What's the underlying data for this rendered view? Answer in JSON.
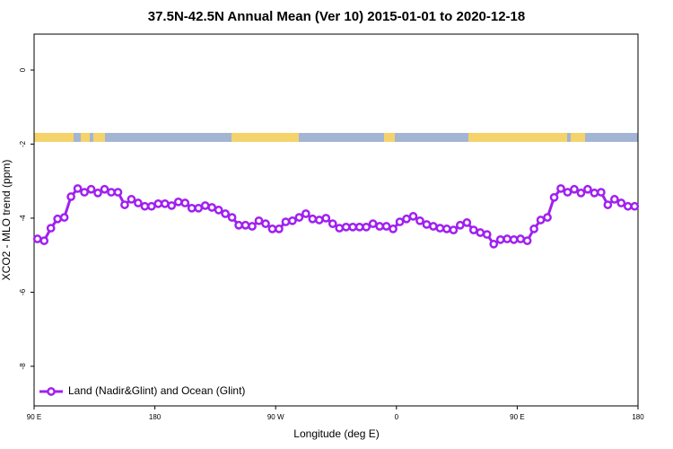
{
  "chart_data": {
    "type": "line",
    "title": "37.5N-42.5N Annual Mean (Ver 10)   2015-01-01 to 2020-12-18",
    "x_label": "Longitude (deg E)",
    "y_label": "XCO2 - MLO trend (ppm)",
    "xlim": [
      90,
      540
    ],
    "ylim": [
      -9.07,
      0.97
    ],
    "xticks": [
      {
        "value": 90,
        "label": "90 E"
      },
      180,
      {
        "value": 270,
        "label": "90 W"
      },
      {
        "value": 360,
        "label": "0"
      },
      {
        "value": 450,
        "label": "90 E"
      },
      {
        "value": 540,
        "label": "180"
      }
    ],
    "yticks": [
      0,
      -2,
      -4,
      -6,
      -8
    ],
    "legend": "bottom-left",
    "x": [
      92.5,
      97.5,
      102.5,
      107.5,
      112.5,
      117.5,
      122.5,
      127.5,
      132.5,
      137.5,
      142.5,
      147.5,
      152.5,
      157.5,
      162.5,
      167.5,
      172.5,
      177.5,
      182.5,
      187.5,
      192.5,
      197.5,
      202.5,
      207.5,
      212.5,
      217.5,
      222.5,
      227.5,
      232.5,
      237.5,
      242.5,
      247.5,
      252.5,
      257.5,
      262.5,
      267.5,
      272.5,
      277.5,
      282.5,
      287.5,
      292.5,
      297.5,
      302.5,
      307.5,
      312.5,
      317.5,
      322.5,
      327.5,
      332.5,
      337.5,
      342.5,
      347.5,
      352.5,
      357.5,
      362.5,
      367.5,
      372.5,
      377.5,
      382.5,
      387.5,
      392.5,
      397.5,
      402.5,
      407.5,
      412.5,
      417.5,
      422.5,
      427.5,
      432.5,
      437.5,
      442.5,
      447.5,
      452.5,
      457.5,
      462.5,
      467.5,
      472.5,
      477.5,
      482.5,
      487.5,
      492.5,
      497.5,
      502.5,
      507.5,
      512.5,
      517.5,
      522.5,
      527.5,
      532.5,
      537.5
    ],
    "series": [
      {
        "name": "Land (Nadir&Glint) and Ocean (Glint)",
        "color": "#a020f0",
        "values": [
          -4.56,
          -4.61,
          -4.27,
          -4.02,
          -3.98,
          -3.42,
          -3.2,
          -3.3,
          -3.22,
          -3.32,
          -3.22,
          -3.3,
          -3.3,
          -3.64,
          -3.49,
          -3.59,
          -3.68,
          -3.68,
          -3.61,
          -3.61,
          -3.66,
          -3.56,
          -3.59,
          -3.73,
          -3.73,
          -3.66,
          -3.71,
          -3.78,
          -3.88,
          -3.98,
          -4.19,
          -4.19,
          -4.22,
          -4.07,
          -4.15,
          -4.29,
          -4.29,
          -4.1,
          -4.07,
          -3.98,
          -3.88,
          -4.02,
          -4.05,
          -4.0,
          -4.15,
          -4.27,
          -4.24,
          -4.24,
          -4.24,
          -4.24,
          -4.15,
          -4.22,
          -4.22,
          -4.29,
          -4.1,
          -4.02,
          -3.95,
          -4.07,
          -4.17,
          -4.22,
          -4.27,
          -4.29,
          -4.32,
          -4.19,
          -4.12,
          -4.32,
          -4.39,
          -4.44,
          -4.7,
          -4.58,
          -4.56,
          -4.58,
          -4.56,
          -4.61,
          -4.29,
          -4.05,
          -3.98,
          -3.44,
          -3.2,
          -3.3,
          -3.22,
          -3.32,
          -3.22,
          -3.32,
          -3.3,
          -3.64,
          -3.49,
          -3.59,
          -3.68,
          -3.68
        ]
      }
    ]
  }
}
